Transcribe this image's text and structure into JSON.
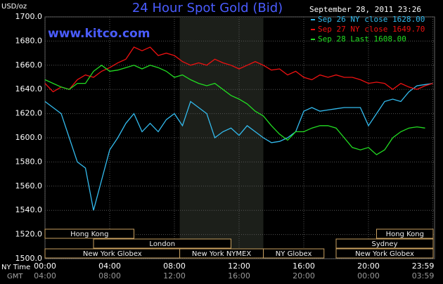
{
  "chart_data": {
    "type": "line",
    "title": "24 Hour Spot Gold (Bid)",
    "subtitle": "www.kitco.com",
    "timestamp": "September 28, 2011 23:26",
    "y_label": "USD/oz",
    "x_label": "NY Time",
    "x2_label": "GMT",
    "x": [
      0,
      0.5,
      1,
      1.5,
      2,
      2.5,
      3,
      3.5,
      4,
      4.5,
      5,
      5.5,
      6,
      6.5,
      7,
      7.5,
      8,
      8.5,
      9,
      9.5,
      10,
      10.5,
      11,
      11.5,
      12,
      12.5,
      13,
      13.5,
      14,
      14.5,
      15,
      15.5,
      16,
      16.5,
      17,
      17.5,
      18,
      18.5,
      19,
      19.5,
      20,
      20.5,
      21,
      21.5,
      22,
      22.5,
      23,
      23.5,
      23.98
    ],
    "series": [
      {
        "name": "Sep 26 NY close 1628.00",
        "color": "#33bbee",
        "values": [
          1630,
          1625,
          1620,
          1600,
          1580,
          1575,
          1540,
          1565,
          1590,
          1600,
          1612,
          1620,
          1605,
          1612,
          1605,
          1615,
          1620,
          1610,
          1630,
          1625,
          1620,
          1600,
          1605,
          1608,
          1602,
          1610,
          1605,
          1600,
          1596,
          1597,
          1600,
          1605,
          1622,
          1625,
          1622,
          1623,
          1624,
          1625,
          1625,
          1625,
          1610,
          1620,
          1630,
          1632,
          1630,
          1638,
          1643,
          1644,
          1645
        ]
      },
      {
        "name": "Sep 27 NY close 1649.70",
        "color": "#ee1111",
        "values": [
          1645,
          1638,
          1642,
          1640,
          1648,
          1652,
          1650,
          1655,
          1658,
          1662,
          1665,
          1675,
          1672,
          1675,
          1668,
          1670,
          1668,
          1663,
          1660,
          1662,
          1660,
          1665,
          1662,
          1660,
          1657,
          1660,
          1663,
          1660,
          1656,
          1657,
          1652,
          1655,
          1650,
          1648,
          1652,
          1650,
          1652,
          1650,
          1650,
          1648,
          1645,
          1646,
          1645,
          1640,
          1645,
          1642,
          1640,
          1643,
          1645
        ]
      },
      {
        "name": "Sep 28 Last 1608.00",
        "color": "#22dd22",
        "values": [
          1648,
          1645,
          1642,
          1640,
          1645,
          1645,
          1655,
          1660,
          1655,
          1656,
          1658,
          1660,
          1657,
          1660,
          1658,
          1655,
          1650,
          1652,
          1648,
          1645,
          1643,
          1645,
          1640,
          1635,
          1632,
          1628,
          1622,
          1618,
          1610,
          1603,
          1598,
          1605,
          1605,
          1608,
          1610,
          1610,
          1608,
          1600,
          1592,
          1590,
          1592,
          1586,
          1590,
          1600,
          1605,
          1608,
          1609,
          1608,
          null
        ]
      }
    ],
    "xlim": [
      0,
      24
    ],
    "xticks": [
      {
        "value": 0,
        "label": "00:00"
      },
      {
        "value": 4,
        "label": "04:00"
      },
      {
        "value": 8,
        "label": "08:00"
      },
      {
        "value": 12,
        "label": "12:00"
      },
      {
        "value": 16,
        "label": "16:00"
      },
      {
        "value": 20,
        "label": "20:00"
      },
      {
        "value": 23.98,
        "label": "23:59"
      }
    ],
    "x2_tick_labels": [
      "04:00",
      "08:00",
      "12:00",
      "16:00",
      "20:00",
      "00:00",
      "03:59"
    ],
    "ylim": [
      1500,
      1700
    ],
    "yticks": [
      {
        "value": 1500,
        "label": "1500.0"
      },
      {
        "value": 1520,
        "label": "1520.0"
      },
      {
        "value": 1540,
        "label": "1540.0"
      },
      {
        "value": 1560,
        "label": "1560.0"
      },
      {
        "value": 1580,
        "label": "1580.0"
      },
      {
        "value": 1600,
        "label": "1600.0"
      },
      {
        "value": 1620,
        "label": "1620.0"
      },
      {
        "value": 1640,
        "label": "1640.0"
      },
      {
        "value": 1660,
        "label": "1660.0"
      },
      {
        "value": 1680,
        "label": "1680.0"
      },
      {
        "value": 1700,
        "label": "1700.0"
      }
    ],
    "grid": true,
    "sessions": [
      [
        {
          "label": "Hong Kong",
          "start": 0,
          "end": 5.5
        },
        {
          "label": "Hong Kong",
          "start": 20.5,
          "end": 24
        }
      ],
      [
        {
          "label": "London",
          "start": 3,
          "end": 11.5
        },
        {
          "label": "Sydney",
          "start": 18,
          "end": 24
        }
      ],
      [
        {
          "label": "New York Globex",
          "start": 0,
          "end": 8.33
        },
        {
          "label": "New York NYMEX",
          "start": 8.33,
          "end": 13.5
        },
        {
          "label": "NY Globex",
          "start": 13.5,
          "end": 17.25
        },
        {
          "label": "New York Globex",
          "start": 18,
          "end": 24
        }
      ]
    ]
  }
}
